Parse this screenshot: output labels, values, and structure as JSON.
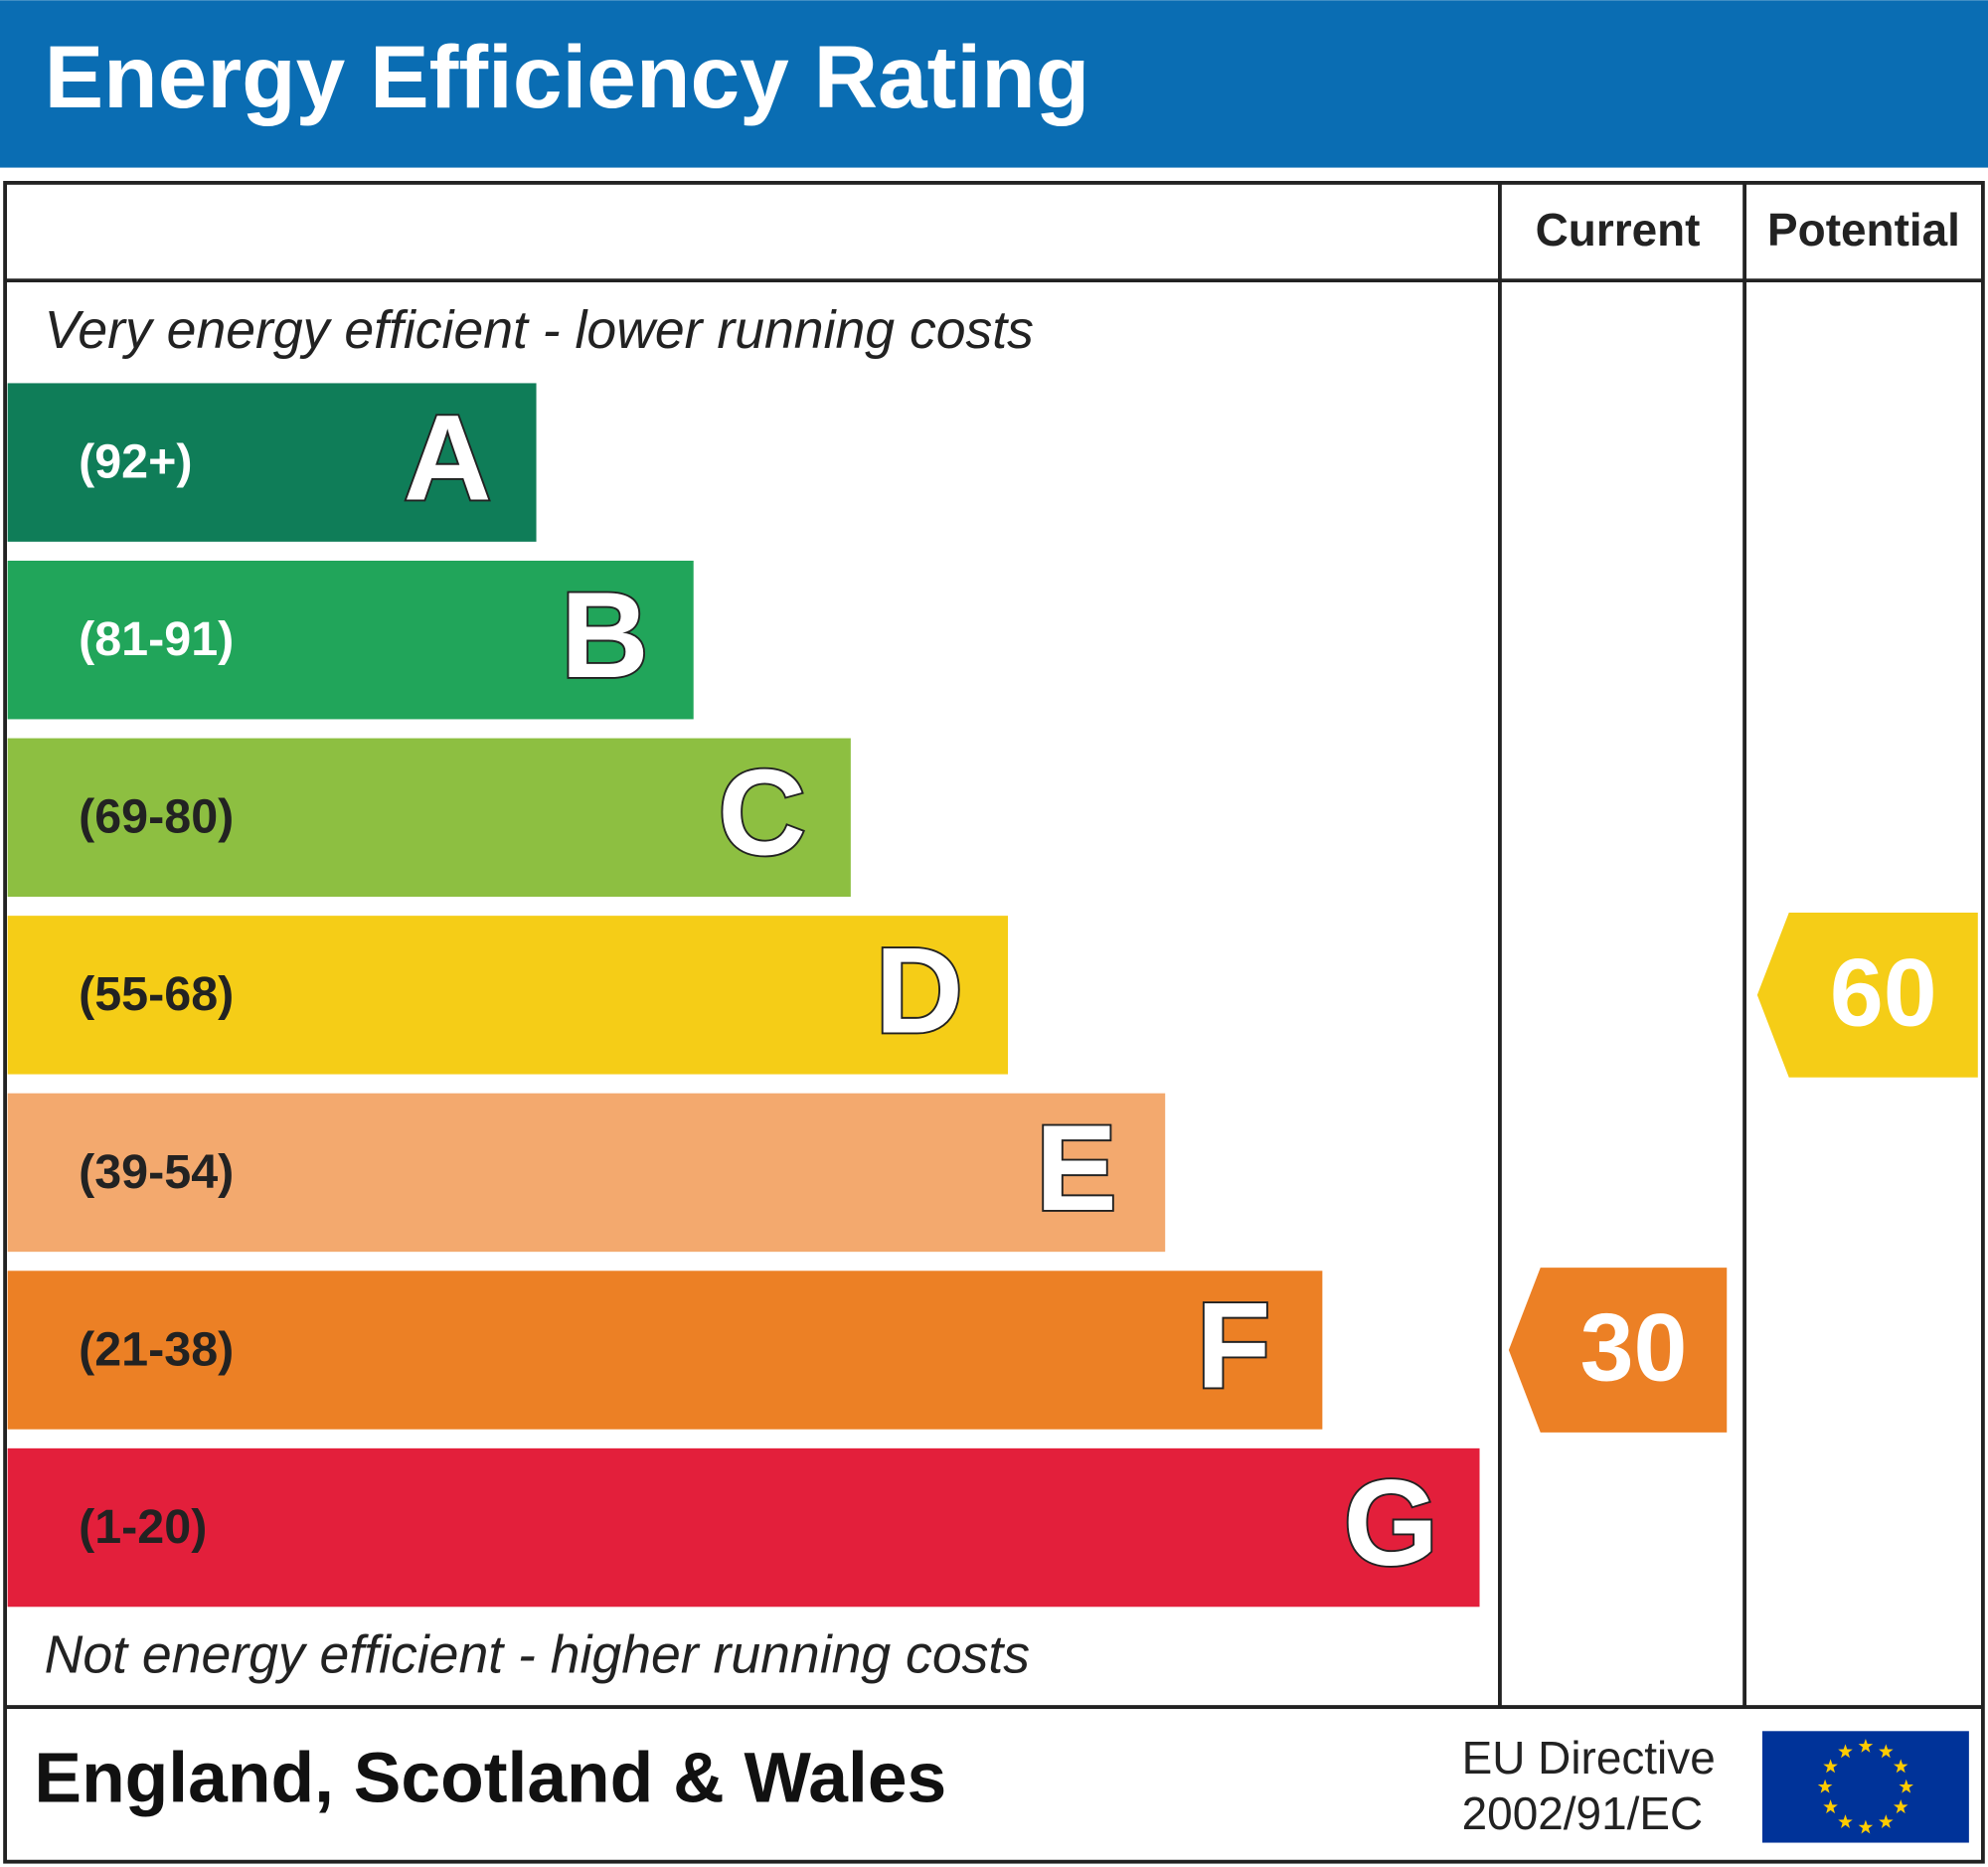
{
  "chart_data": {
    "type": "epc",
    "title": "Energy Efficiency Rating",
    "columns": [
      "Current",
      "Potential"
    ],
    "top_note": "Very energy efficient - lower running costs",
    "bottom_note": "Not energy efficient - higher running costs",
    "bands": [
      {
        "letter": "A",
        "range": "(92+)",
        "color": "#0f7d58",
        "label_color": "#ffffff"
      },
      {
        "letter": "B",
        "range": "(81-91)",
        "color": "#21a55a",
        "label_color": "#ffffff"
      },
      {
        "letter": "C",
        "range": "(69-80)",
        "color": "#8dbf41",
        "label_color": "#222222"
      },
      {
        "letter": "D",
        "range": "(55-68)",
        "color": "#f5cd17",
        "label_color": "#222222"
      },
      {
        "letter": "E",
        "range": "(39-54)",
        "color": "#f3a96e",
        "label_color": "#222222"
      },
      {
        "letter": "F",
        "range": "(21-38)",
        "color": "#ec8025",
        "label_color": "#222222"
      },
      {
        "letter": "G",
        "range": "(1-20)",
        "color": "#e31f3b",
        "label_color": "#222222"
      }
    ],
    "ratings": [
      30,
      60
    ],
    "footer": "England, Scotland & Wales",
    "directive": [
      "EU Directive",
      "2002/91/EC"
    ]
  }
}
